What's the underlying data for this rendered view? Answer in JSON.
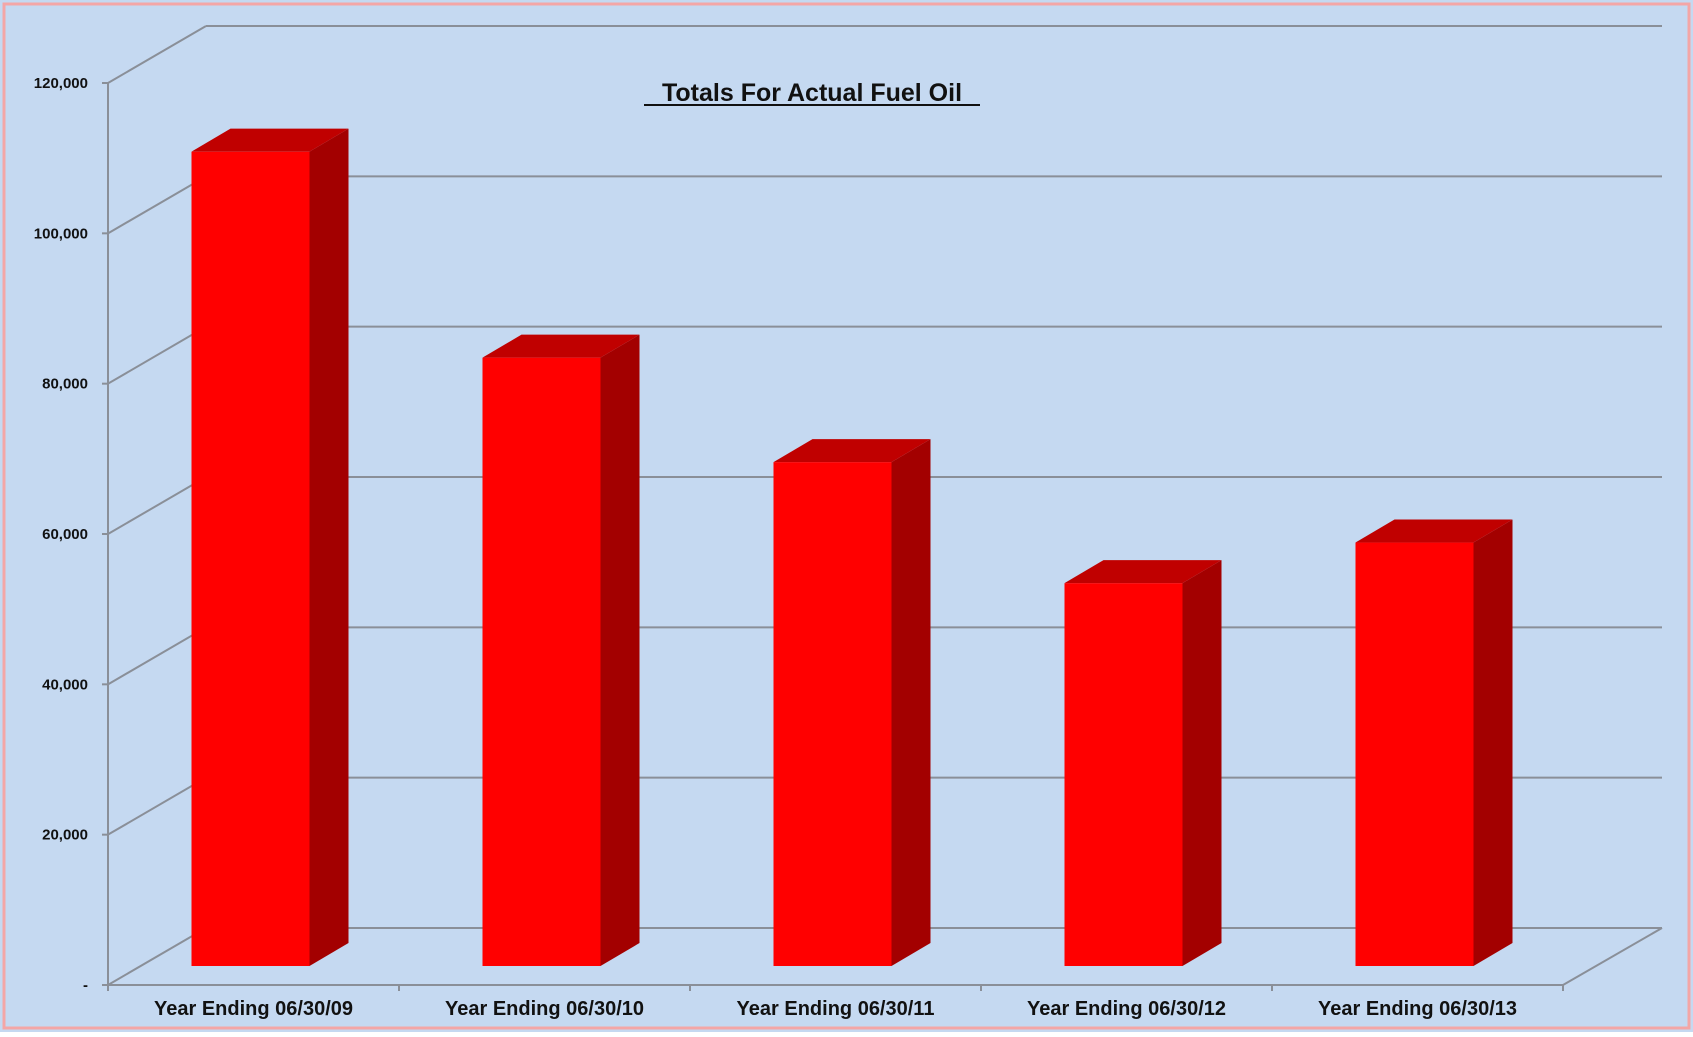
{
  "chart_data": {
    "type": "bar",
    "title": "Totals For Actual Fuel Oil",
    "xlabel": "",
    "ylabel": "",
    "categories": [
      "Year Ending 06/30/09",
      "Year Ending 06/30/10",
      "Year Ending 06/30/11",
      "Year Ending 06/30/12",
      "Year Ending 06/30/13"
    ],
    "values": [
      109000,
      81600,
      67700,
      51600,
      57000
    ],
    "ylim": [
      0,
      120000
    ],
    "yticks": [
      "-",
      "20,000",
      "40,000",
      "60,000",
      "80,000",
      "100,000",
      "120,000"
    ],
    "grid": true,
    "legend": "none",
    "colors": {
      "background": "#c5d9f1",
      "bar_front": "#ff0000",
      "bar_side": "#a30000",
      "bar_top": "#c00000",
      "gridline": "#8a8f98",
      "frame_border": "#f4a6a6"
    }
  }
}
